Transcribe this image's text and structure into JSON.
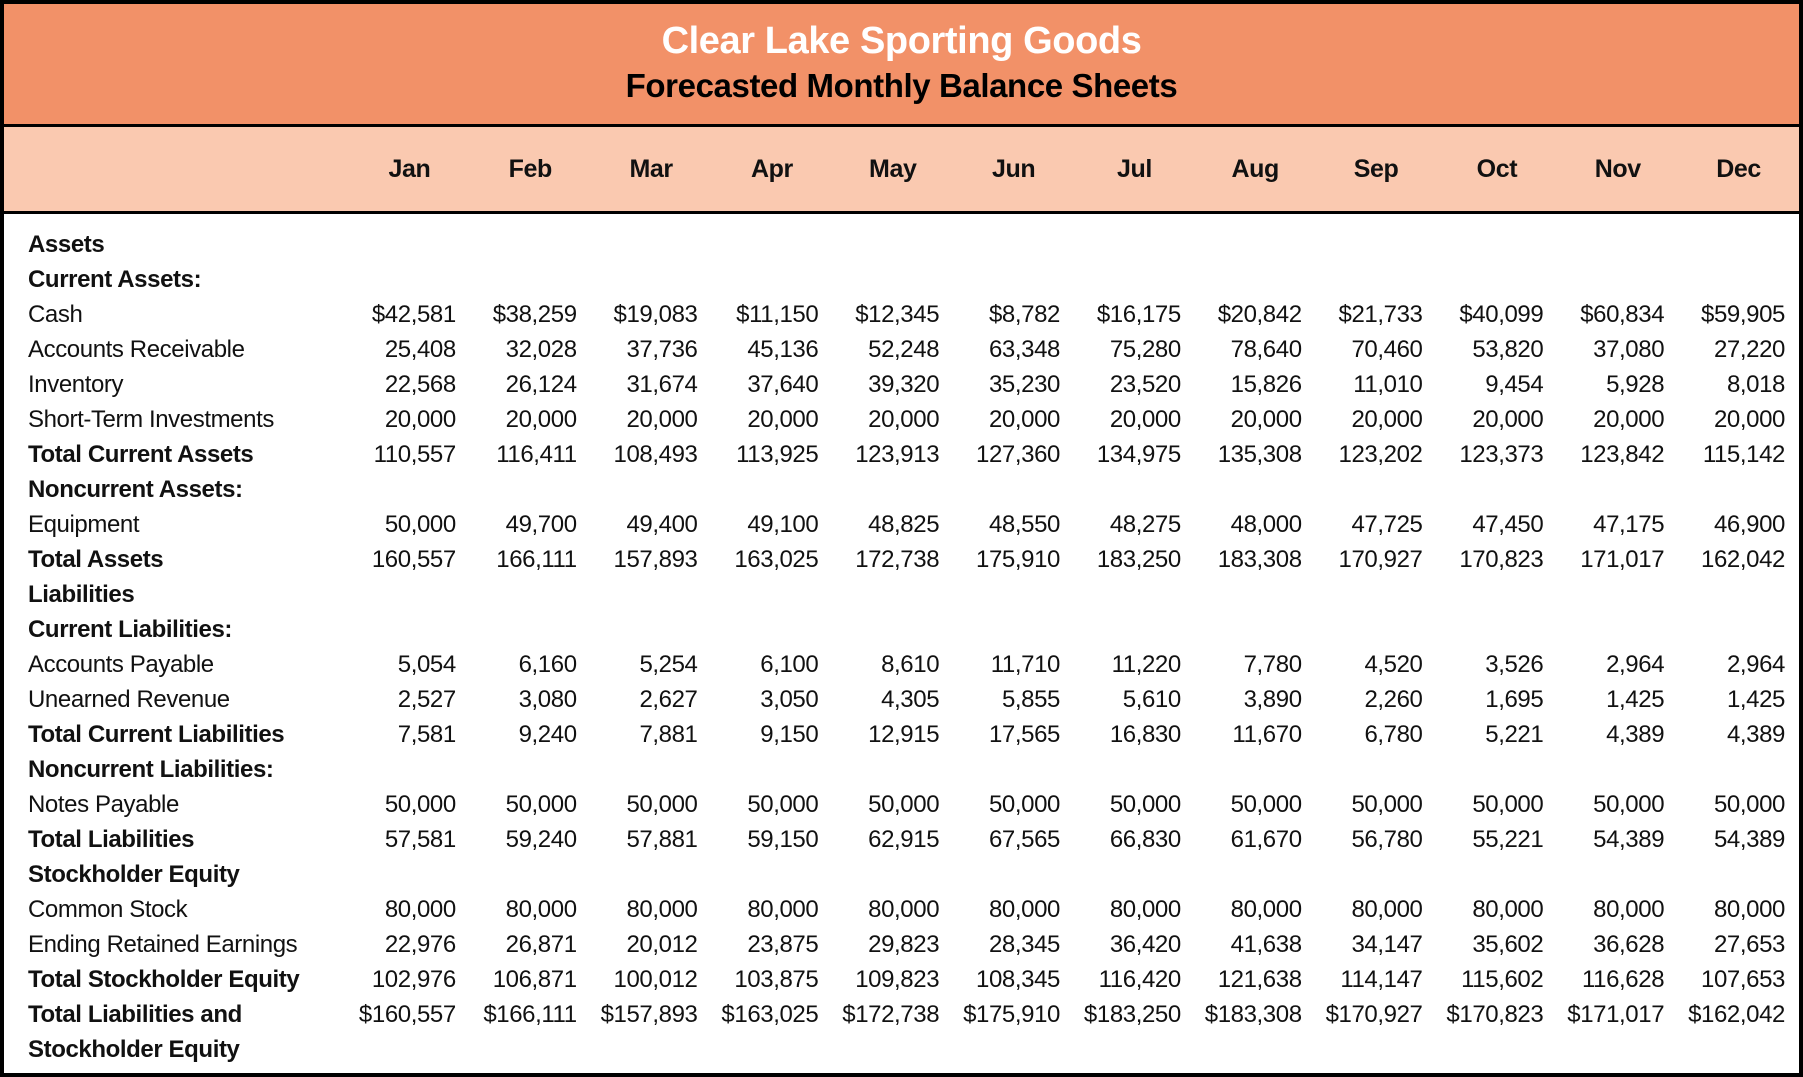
{
  "header": {
    "title": "Clear Lake Sporting Goods",
    "subtitle": "Forecasted Monthly Balance Sheets"
  },
  "months": [
    "Jan",
    "Feb",
    "Mar",
    "Apr",
    "May",
    "Jun",
    "Jul",
    "Aug",
    "Sep",
    "Oct",
    "Nov",
    "Dec"
  ],
  "colors": {
    "header_bg": "#F29168",
    "months_bg": "#FAC9B0",
    "border": "#000000",
    "body_bg": "#FFFFFF",
    "title_text": "#FFFFFF",
    "body_text": "#111111"
  },
  "rows": [
    {
      "label": "Assets",
      "style": "section",
      "values": []
    },
    {
      "label": "Current Assets:",
      "style": "section",
      "values": []
    },
    {
      "label": "Cash",
      "style": "item",
      "values": [
        "$42,581",
        "$38,259",
        "$19,083",
        "$11,150",
        "$12,345",
        "$8,782",
        "$16,175",
        "$20,842",
        "$21,733",
        "$40,099",
        "$60,834",
        "$59,905"
      ]
    },
    {
      "label": "Accounts Receivable",
      "style": "item",
      "values": [
        "25,408",
        "32,028",
        "37,736",
        "45,136",
        "52,248",
        "63,348",
        "75,280",
        "78,640",
        "70,460",
        "53,820",
        "37,080",
        "27,220"
      ]
    },
    {
      "label": "Inventory",
      "style": "item",
      "values": [
        "22,568",
        "26,124",
        "31,674",
        "37,640",
        "39,320",
        "35,230",
        "23,520",
        "15,826",
        "11,010",
        "9,454",
        "5,928",
        "8,018"
      ]
    },
    {
      "label": "Short-Term Investments",
      "style": "item",
      "values": [
        "20,000",
        "20,000",
        "20,000",
        "20,000",
        "20,000",
        "20,000",
        "20,000",
        "20,000",
        "20,000",
        "20,000",
        "20,000",
        "20,000"
      ]
    },
    {
      "label": "Total Current Assets",
      "style": "total",
      "values": [
        "110,557",
        "116,411",
        "108,493",
        "113,925",
        "123,913",
        "127,360",
        "134,975",
        "135,308",
        "123,202",
        "123,373",
        "123,842",
        "115,142"
      ]
    },
    {
      "label": "Noncurrent Assets:",
      "style": "section",
      "values": []
    },
    {
      "label": "Equipment",
      "style": "item",
      "values": [
        "50,000",
        "49,700",
        "49,400",
        "49,100",
        "48,825",
        "48,550",
        "48,275",
        "48,000",
        "47,725",
        "47,450",
        "47,175",
        "46,900"
      ]
    },
    {
      "label": "Total Assets",
      "style": "total",
      "values": [
        "160,557",
        "166,111",
        "157,893",
        "163,025",
        "172,738",
        "175,910",
        "183,250",
        "183,308",
        "170,927",
        "170,823",
        "171,017",
        "162,042"
      ]
    },
    {
      "label": "Liabilities",
      "style": "section",
      "values": []
    },
    {
      "label": "Current Liabilities:",
      "style": "section",
      "values": []
    },
    {
      "label": "Accounts Payable",
      "style": "item",
      "values": [
        "5,054",
        "6,160",
        "5,254",
        "6,100",
        "8,610",
        "11,710",
        "11,220",
        "7,780",
        "4,520",
        "3,526",
        "2,964",
        "2,964"
      ]
    },
    {
      "label": "Unearned Revenue",
      "style": "item",
      "values": [
        "2,527",
        "3,080",
        "2,627",
        "3,050",
        "4,305",
        "5,855",
        "5,610",
        "3,890",
        "2,260",
        "1,695",
        "1,425",
        "1,425"
      ]
    },
    {
      "label": "Total Current Liabilities",
      "style": "total",
      "values": [
        "7,581",
        "9,240",
        "7,881",
        "9,150",
        "12,915",
        "17,565",
        "16,830",
        "11,670",
        "6,780",
        "5,221",
        "4,389",
        "4,389"
      ]
    },
    {
      "label": "Noncurrent Liabilities:",
      "style": "section",
      "values": []
    },
    {
      "label": "Notes Payable",
      "style": "item",
      "values": [
        "50,000",
        "50,000",
        "50,000",
        "50,000",
        "50,000",
        "50,000",
        "50,000",
        "50,000",
        "50,000",
        "50,000",
        "50,000",
        "50,000"
      ]
    },
    {
      "label": "Total Liabilities",
      "style": "total",
      "values": [
        "57,581",
        "59,240",
        "57,881",
        "59,150",
        "62,915",
        "67,565",
        "66,830",
        "61,670",
        "56,780",
        "55,221",
        "54,389",
        "54,389"
      ]
    },
    {
      "label": "Stockholder Equity",
      "style": "section",
      "values": []
    },
    {
      "label": "Common Stock",
      "style": "item",
      "values": [
        "80,000",
        "80,000",
        "80,000",
        "80,000",
        "80,000",
        "80,000",
        "80,000",
        "80,000",
        "80,000",
        "80,000",
        "80,000",
        "80,000"
      ]
    },
    {
      "label": "Ending Retained Earnings",
      "style": "item",
      "values": [
        "22,976",
        "26,871",
        "20,012",
        "23,875",
        "29,823",
        "28,345",
        "36,420",
        "41,638",
        "34,147",
        "35,602",
        "36,628",
        "27,653"
      ]
    },
    {
      "label": "Total Stockholder Equity",
      "style": "total",
      "values": [
        "102,976",
        "106,871",
        "100,012",
        "103,875",
        "109,823",
        "108,345",
        "116,420",
        "121,638",
        "114,147",
        "115,602",
        "116,628",
        "107,653"
      ]
    },
    {
      "label": "Total Liabilities and",
      "label2": "Stockholder Equity",
      "style": "total",
      "values": [
        "$160,557",
        "$166,111",
        "$157,893",
        "$163,025",
        "$172,738",
        "$175,910",
        "$183,250",
        "$183,308",
        "$170,927",
        "$170,823",
        "$171,017",
        "$162,042"
      ]
    }
  ]
}
